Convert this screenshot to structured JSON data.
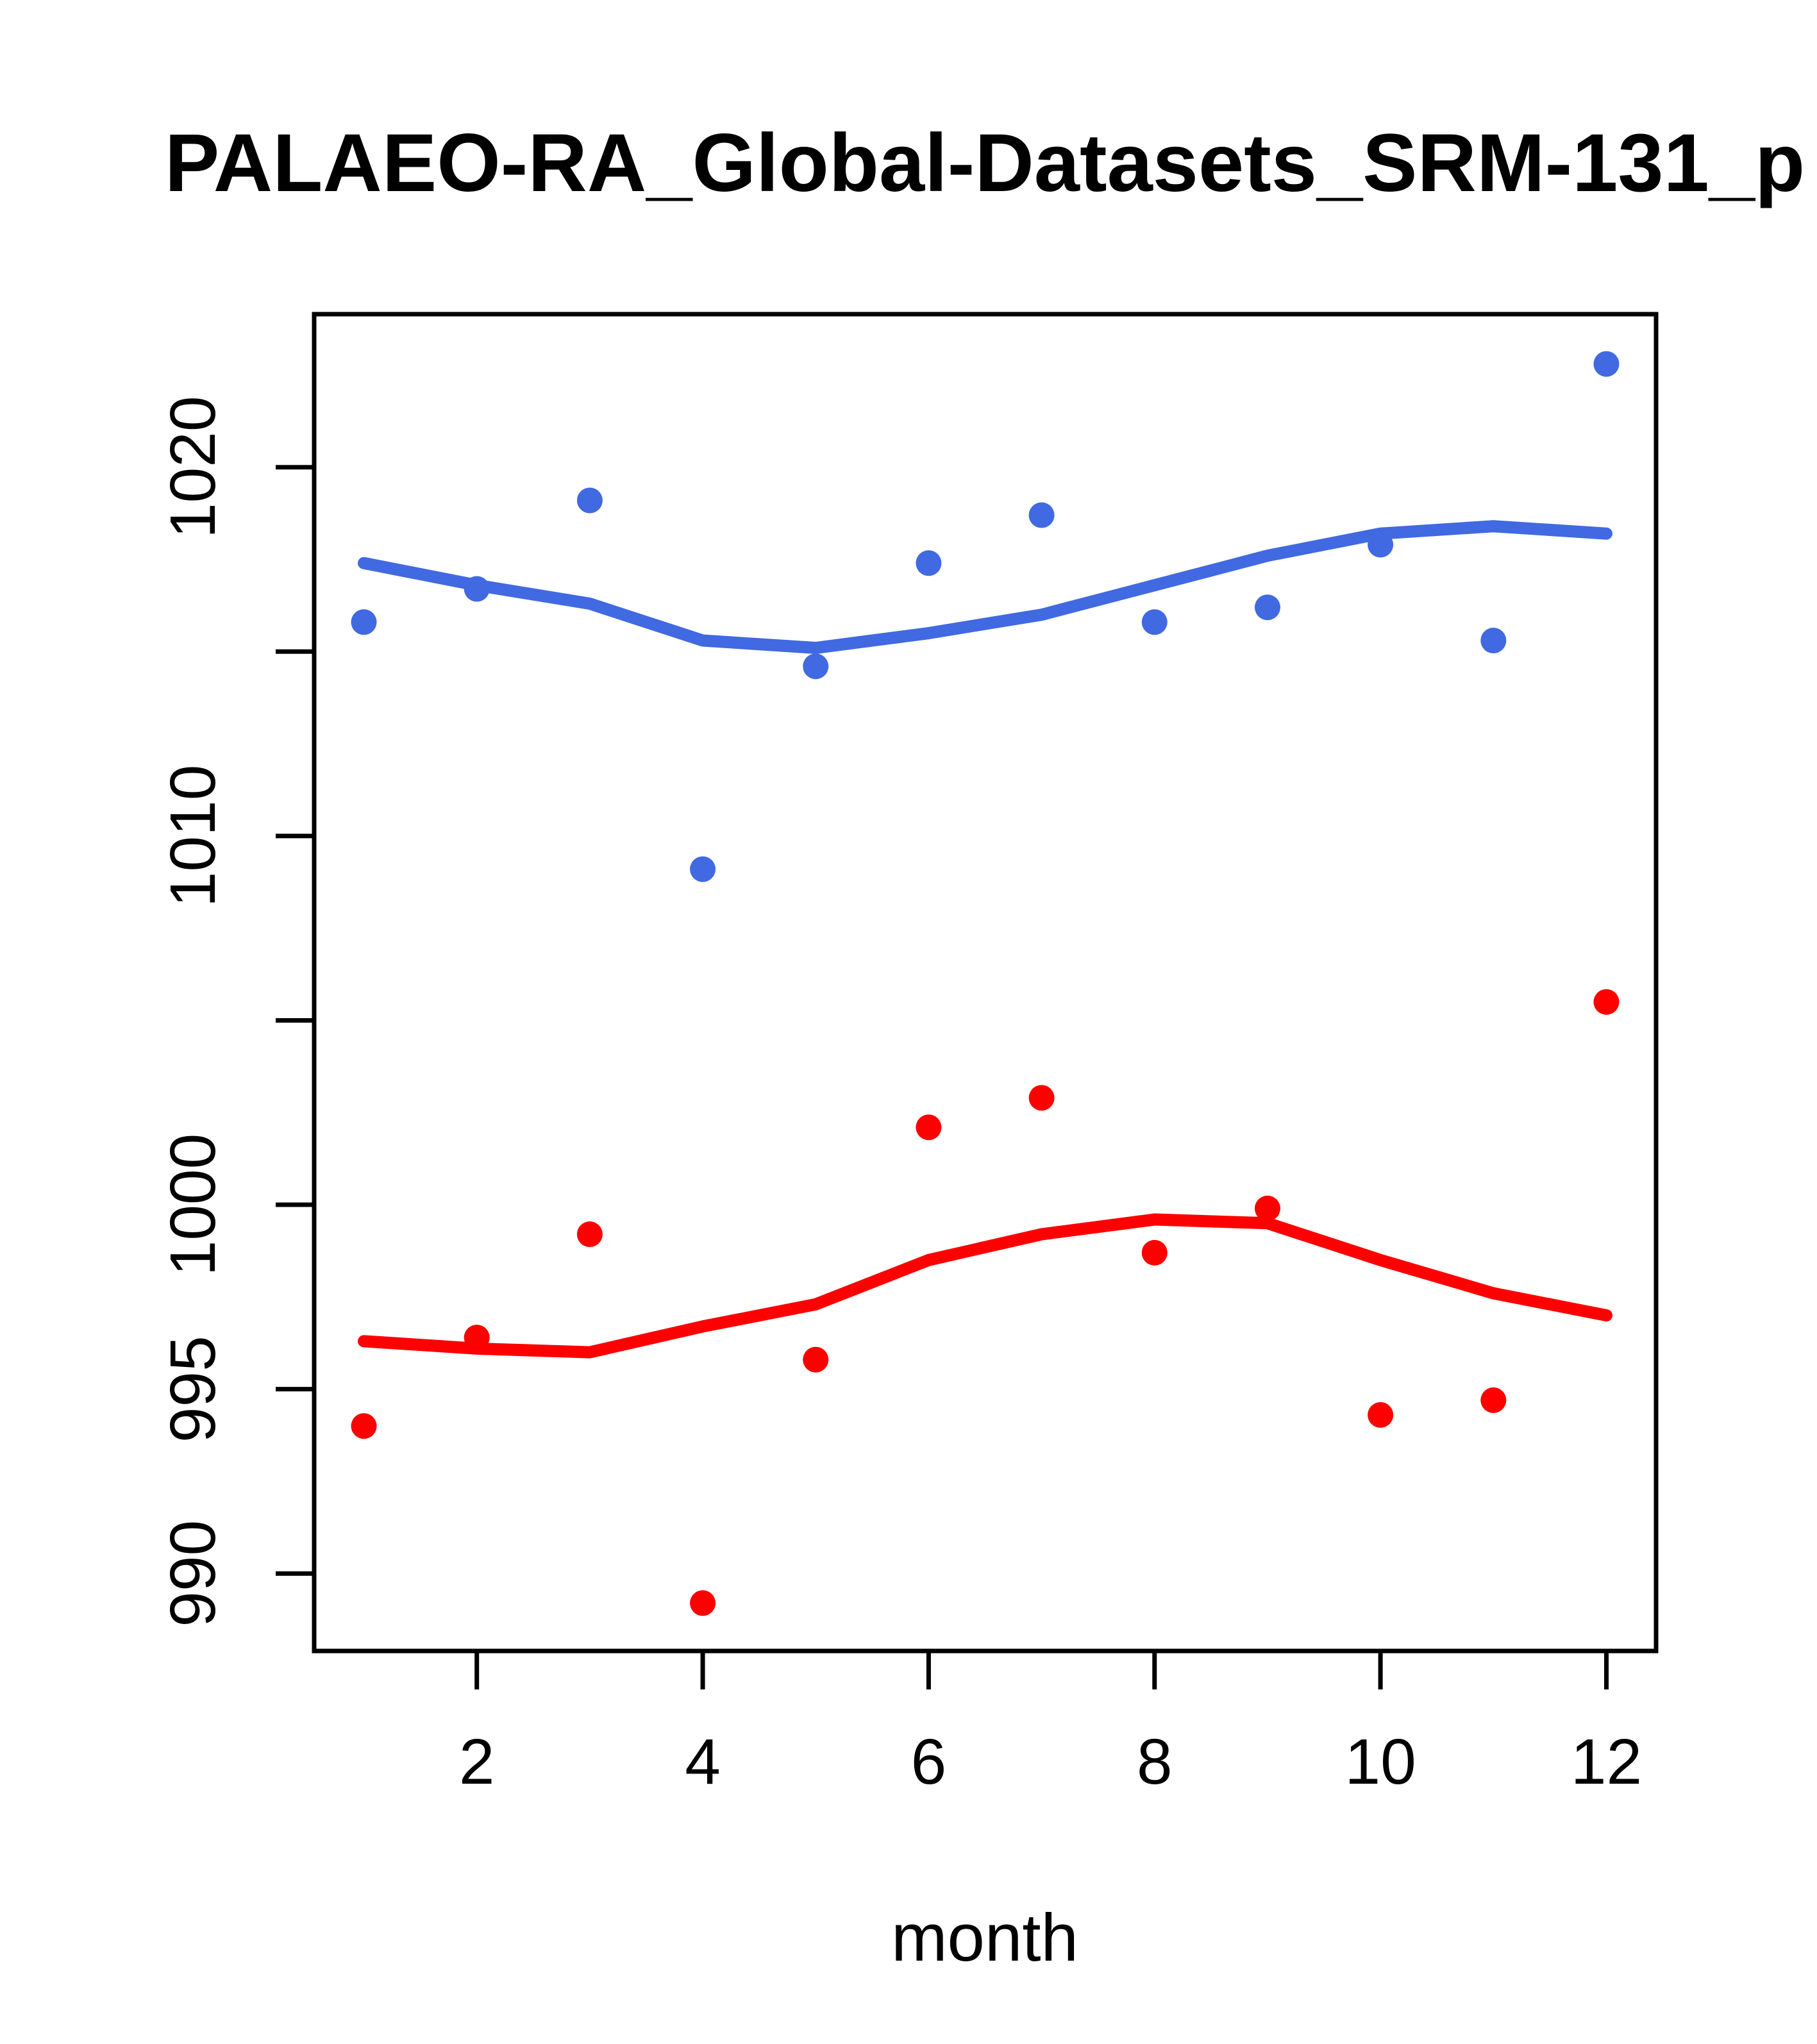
{
  "chart_data": {
    "type": "scatter",
    "title": "PALAEO-RA_Global-Datasets_SRM-131_p",
    "xlabel": "month",
    "ylabel": "",
    "grid": "off",
    "legend": "none",
    "x": [
      1,
      2,
      3,
      4,
      5,
      6,
      7,
      8,
      9,
      10,
      11,
      12
    ],
    "xlim": [
      0.56,
      12.44
    ],
    "ylim": [
      987.9,
      1024.15
    ],
    "x_ticks": [
      {
        "v": 2,
        "label": "2"
      },
      {
        "v": 4,
        "label": "4"
      },
      {
        "v": 6,
        "label": "6"
      },
      {
        "v": 8,
        "label": "8"
      },
      {
        "v": 10,
        "label": "10"
      },
      {
        "v": 12,
        "label": "12"
      }
    ],
    "y_ticks": [
      {
        "v": 990,
        "label": "990"
      },
      {
        "v": 995,
        "label": "995"
      },
      {
        "v": 1000,
        "label": "1000"
      },
      {
        "v": 1005,
        "label": ""
      },
      {
        "v": 1010,
        "label": "1010"
      },
      {
        "v": 1015,
        "label": ""
      },
      {
        "v": 1020,
        "label": "1020"
      }
    ],
    "colors": {
      "series1": "#4169E1",
      "series2": "#FF0000",
      "axis": "#000000"
    },
    "series": [
      {
        "name": "blue-points",
        "kind": "points",
        "color": "#4169E1",
        "values": [
          1015.8,
          1016.7,
          1019.1,
          1009.1,
          1014.6,
          1017.4,
          1018.7,
          1015.8,
          1016.2,
          1017.9,
          1015.3,
          1022.8
        ]
      },
      {
        "name": "red-points",
        "kind": "points",
        "color": "#FF0000",
        "values": [
          994.0,
          996.4,
          999.2,
          989.2,
          995.8,
          1002.1,
          1002.9,
          998.7,
          999.9,
          994.3,
          994.7,
          1005.5
        ]
      },
      {
        "name": "blue-loess-line",
        "kind": "line",
        "color": "#4169E1",
        "values": [
          1017.4,
          1016.8,
          1016.3,
          1015.3,
          1015.1,
          1015.5,
          1016.0,
          1016.8,
          1017.6,
          1018.2,
          1018.4,
          1018.2
        ]
      },
      {
        "name": "red-loess-line",
        "kind": "line",
        "color": "#FF0000",
        "values": [
          996.3,
          996.1,
          996.0,
          996.7,
          997.3,
          998.5,
          999.2,
          999.6,
          999.5,
          998.5,
          997.6,
          997.0
        ]
      }
    ]
  }
}
